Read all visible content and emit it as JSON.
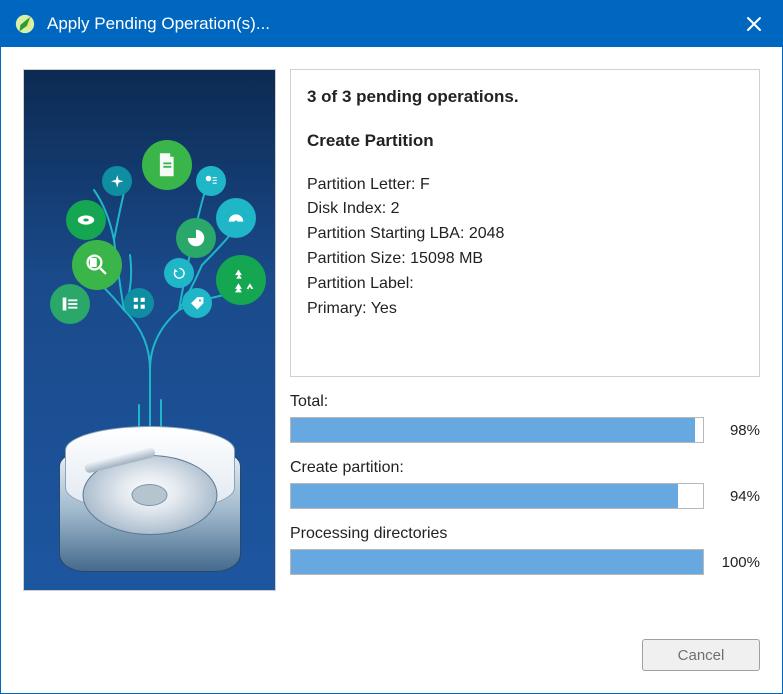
{
  "window": {
    "title": "Apply Pending Operation(s)...",
    "titlebar_bg": "#0067c0",
    "titlebar_fg": "#ffffff"
  },
  "operation": {
    "count_line": "3 of 3 pending operations.",
    "name": "Create Partition",
    "details": [
      "Partition Letter: F",
      "Disk Index: 2",
      "Partition Starting LBA: 2048",
      "Partition Size: 15098 MB",
      "Partition Label:",
      "Primary: Yes"
    ]
  },
  "progress": {
    "items": [
      {
        "label": "Total:",
        "percent": 98,
        "pct_label": "98%"
      },
      {
        "label": "Create partition:",
        "percent": 94,
        "pct_label": "94%"
      },
      {
        "label": "Processing directories",
        "percent": 100,
        "pct_label": "100%"
      }
    ],
    "bar_fill_color": "#67a8e0",
    "bar_border_color": "#b8b8b8",
    "bar_bg_color": "#ffffff"
  },
  "buttons": {
    "cancel_label": "Cancel"
  },
  "illustration": {
    "bg_gradient_top": "#0c2a52",
    "bg_gradient_mid": "#1a4a8a",
    "bg_gradient_bot": "#1d56a0",
    "branch_color": "#1fb6c8",
    "node_colors": {
      "green1": "#3ab54a",
      "green2": "#14a651",
      "green3": "#2aa86a",
      "teal1": "#1fb6c8",
      "teal2": "#0e8ea0"
    }
  },
  "colors": {
    "border": "#d0d0d0",
    "text": "#222222",
    "window_bg": "#ffffff"
  }
}
